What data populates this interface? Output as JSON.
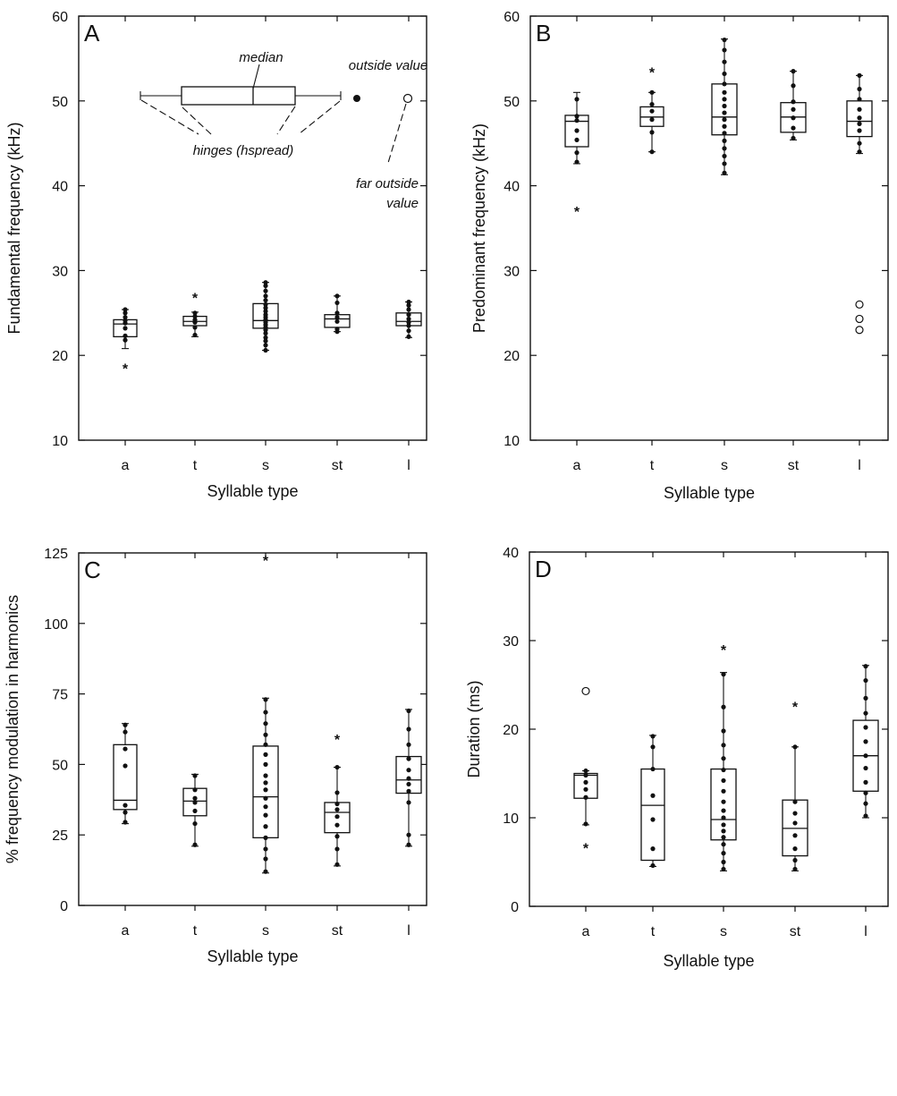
{
  "chart_data": [
    {
      "type": "box",
      "panel_label": "A",
      "xlabel": "Syllable type",
      "ylabel": "Fundamental frequency (kHz)",
      "ylim": [
        10,
        60
      ],
      "yticks": [
        10,
        20,
        30,
        40,
        50,
        60
      ],
      "categories": [
        "a",
        "t",
        "s",
        "st",
        "l"
      ],
      "boxes": [
        {
          "category": "a",
          "whisker_low": 20.8,
          "q1": 22.2,
          "median": 23.7,
          "q3": 24.2,
          "whisker_high": 25.4,
          "points": [
            21.8,
            22.3,
            23.2,
            23.8,
            24.1,
            24.5,
            25.0,
            25.4
          ],
          "outside": [
            18.5
          ],
          "far_outside": []
        },
        {
          "category": "t",
          "whisker_low": 22.2,
          "q1": 23.5,
          "median": 24.0,
          "q3": 24.6,
          "whisker_high": 25.1,
          "points": [
            22.4,
            23.3,
            23.9,
            24.2,
            24.6,
            25.0
          ],
          "outside": [
            26.8
          ],
          "far_outside": []
        },
        {
          "category": "s",
          "whisker_low": 20.6,
          "q1": 23.2,
          "median": 24.1,
          "q3": 26.1,
          "whisker_high": 28.6,
          "points": [
            20.6,
            21.2,
            21.7,
            22.1,
            22.6,
            23.0,
            23.3,
            23.6,
            23.9,
            24.2,
            24.5,
            24.8,
            25.2,
            25.6,
            26.0,
            26.5,
            27.0,
            27.6,
            28.2,
            28.6
          ],
          "outside": [],
          "far_outside": []
        },
        {
          "category": "st",
          "whisker_low": 22.8,
          "q1": 23.3,
          "median": 24.3,
          "q3": 24.8,
          "whisker_high": 27.0,
          "points": [
            22.8,
            23.1,
            24.0,
            24.5,
            25.0,
            26.2,
            27.0
          ],
          "outside": [],
          "far_outside": []
        },
        {
          "category": "l",
          "whisker_low": 22.1,
          "q1": 23.5,
          "median": 24.0,
          "q3": 25.0,
          "whisker_high": 26.3,
          "points": [
            22.2,
            22.9,
            23.5,
            23.9,
            24.3,
            24.8,
            25.4,
            25.9,
            26.3
          ],
          "outside": [],
          "far_outside": []
        }
      ],
      "legend_key": {
        "median_label": "median",
        "outside_label": "outside value",
        "hinges_label": "hinges (hspread)",
        "far_outside_label_line1": "far outside",
        "far_outside_label_line2": "value"
      }
    },
    {
      "type": "box",
      "panel_label": "B",
      "xlabel": "Syllable type",
      "ylabel": "Predominant frequency (kHz)",
      "ylim": [
        10,
        60
      ],
      "yticks": [
        10,
        20,
        30,
        40,
        50,
        60
      ],
      "categories": [
        "a",
        "t",
        "s",
        "st",
        "l"
      ],
      "boxes": [
        {
          "category": "a",
          "whisker_low": 42.6,
          "q1": 44.6,
          "median": 47.6,
          "q3": 48.3,
          "whisker_high": 51.0,
          "points": [
            42.8,
            43.9,
            45.4,
            46.5,
            47.7,
            48.2,
            50.2
          ],
          "outside": [
            37.0
          ],
          "far_outside": []
        },
        {
          "category": "t",
          "whisker_low": 44.0,
          "q1": 47.0,
          "median": 48.1,
          "q3": 49.3,
          "whisker_high": 51.0,
          "points": [
            44.0,
            46.3,
            47.8,
            48.8,
            49.6,
            51.0
          ],
          "outside": [
            53.4
          ],
          "far_outside": []
        },
        {
          "category": "s",
          "whisker_low": 41.3,
          "q1": 46.0,
          "median": 48.1,
          "q3": 52.0,
          "whisker_high": 57.3,
          "points": [
            41.5,
            42.6,
            43.5,
            44.4,
            45.3,
            46.2,
            47.0,
            47.8,
            48.6,
            49.4,
            50.2,
            51.0,
            52.0,
            53.2,
            54.6,
            56.0,
            57.2
          ],
          "outside": [],
          "far_outside": []
        },
        {
          "category": "st",
          "whisker_low": 45.4,
          "q1": 46.3,
          "median": 48.1,
          "q3": 49.8,
          "whisker_high": 53.5,
          "points": [
            45.6,
            46.8,
            48.0,
            49.0,
            49.9,
            51.8,
            53.5
          ],
          "outside": [],
          "far_outside": []
        },
        {
          "category": "l",
          "whisker_low": 43.8,
          "q1": 45.8,
          "median": 47.6,
          "q3": 50.0,
          "whisker_high": 53.0,
          "points": [
            44.0,
            45.0,
            46.5,
            47.3,
            48.0,
            49.0,
            50.2,
            51.4,
            53.0
          ],
          "outside": [],
          "far_outside": [
            26.0,
            24.3,
            23.0
          ]
        }
      ]
    },
    {
      "type": "box",
      "panel_label": "C",
      "xlabel": "Syllable type",
      "ylabel": "% frequency modulation in harmonics",
      "ylim": [
        0,
        125
      ],
      "yticks": [
        0,
        25,
        50,
        75,
        100,
        125
      ],
      "categories": [
        "a",
        "t",
        "s",
        "st",
        "l"
      ],
      "boxes": [
        {
          "category": "a",
          "whisker_low": 29.0,
          "q1": 34.0,
          "median": 37.3,
          "q3": 57.0,
          "whisker_high": 64.5,
          "points": [
            29.5,
            33.0,
            35.5,
            49.5,
            55.5,
            61.5,
            64.0
          ],
          "outside": [],
          "far_outside": []
        },
        {
          "category": "t",
          "whisker_low": 21.0,
          "q1": 31.8,
          "median": 37.0,
          "q3": 41.5,
          "whisker_high": 46.5,
          "points": [
            21.5,
            29.0,
            33.5,
            36.5,
            38.0,
            41.0,
            46.0
          ],
          "outside": [],
          "far_outside": []
        },
        {
          "category": "s",
          "whisker_low": 11.5,
          "q1": 24.0,
          "median": 38.5,
          "q3": 56.5,
          "whisker_high": 73.5,
          "points": [
            12.0,
            16.5,
            20.0,
            24.0,
            28.0,
            32.0,
            35.0,
            38.0,
            41.0,
            43.5,
            46.0,
            50.0,
            53.5,
            57.0,
            60.5,
            64.5,
            68.5,
            73.0
          ],
          "outside": [
            122.5
          ],
          "far_outside": []
        },
        {
          "category": "st",
          "whisker_low": 14.0,
          "q1": 25.8,
          "median": 33.0,
          "q3": 36.5,
          "whisker_high": 49.0,
          "points": [
            14.5,
            20.0,
            24.5,
            28.5,
            31.5,
            34.0,
            36.0,
            40.0,
            49.0
          ],
          "outside": [
            59.0
          ],
          "far_outside": []
        },
        {
          "category": "l",
          "whisker_low": 21.0,
          "q1": 39.8,
          "median": 44.5,
          "q3": 52.8,
          "whisker_high": 69.5,
          "points": [
            21.5,
            25.0,
            36.5,
            40.5,
            43.0,
            45.0,
            48.0,
            52.0,
            57.0,
            62.5,
            69.0
          ],
          "outside": [],
          "far_outside": []
        }
      ]
    },
    {
      "type": "box",
      "panel_label": "D",
      "xlabel": "Syllable type",
      "ylabel": "Duration (ms)",
      "ylim": [
        0,
        40
      ],
      "yticks": [
        0,
        10,
        20,
        30,
        40
      ],
      "categories": [
        "a",
        "t",
        "s",
        "st",
        "l"
      ],
      "boxes": [
        {
          "category": "a",
          "whisker_low": 9.2,
          "q1": 12.2,
          "median": 14.8,
          "q3": 15.0,
          "whisker_high": 15.3,
          "points": [
            9.3,
            12.3,
            13.2,
            14.0,
            14.8,
            15.3
          ],
          "outside": [
            6.6
          ],
          "far_outside": [
            24.3
          ]
        },
        {
          "category": "t",
          "whisker_low": 4.5,
          "q1": 5.2,
          "median": 11.4,
          "q3": 15.5,
          "whisker_high": 19.3,
          "points": [
            4.6,
            6.5,
            9.8,
            12.5,
            15.5,
            18.0,
            19.2
          ],
          "outside": [],
          "far_outside": []
        },
        {
          "category": "s",
          "whisker_low": 4.0,
          "q1": 7.5,
          "median": 9.8,
          "q3": 15.5,
          "whisker_high": 26.4,
          "points": [
            4.2,
            5.0,
            6.0,
            7.0,
            7.8,
            8.5,
            9.2,
            10.0,
            10.8,
            11.8,
            13.0,
            14.2,
            15.4,
            16.7,
            18.2,
            19.8,
            22.5,
            26.2
          ],
          "outside": [
            29.0
          ],
          "far_outside": []
        },
        {
          "category": "st",
          "whisker_low": 4.0,
          "q1": 5.7,
          "median": 8.8,
          "q3": 12.0,
          "whisker_high": 18.0,
          "points": [
            4.2,
            5.2,
            6.5,
            8.0,
            9.4,
            10.5,
            11.8,
            18.0
          ],
          "outside": [
            22.6
          ],
          "far_outside": []
        },
        {
          "category": "l",
          "whisker_low": 10.0,
          "q1": 13.0,
          "median": 17.0,
          "q3": 21.0,
          "whisker_high": 27.2,
          "points": [
            10.2,
            11.6,
            12.8,
            14.0,
            15.6,
            17.0,
            18.6,
            20.2,
            21.8,
            23.5,
            25.5,
            27.1
          ],
          "outside": [],
          "far_outside": []
        }
      ]
    }
  ]
}
